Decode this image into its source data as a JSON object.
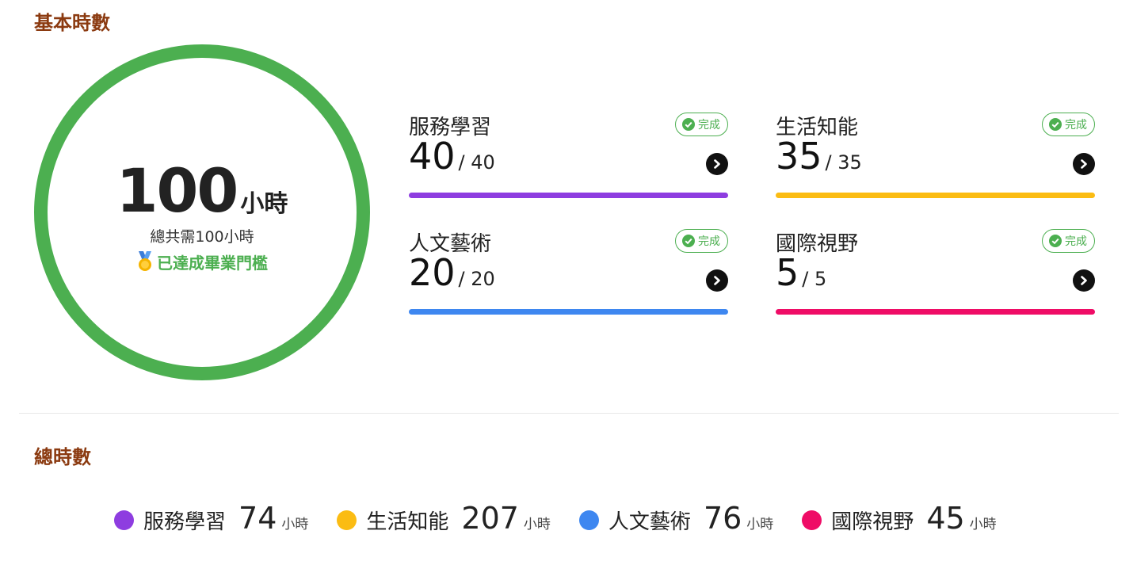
{
  "basic": {
    "title": "基本時數",
    "total_hours": "100",
    "hours_unit": "小時",
    "required_text": "總共需100小時",
    "achieved_text": "已達成畢業門檻",
    "ring_color": "#4caf50",
    "categories": [
      {
        "label": "服務學習",
        "current": "40",
        "target": "/ 40",
        "badge": "完成",
        "color": "#8e3de0",
        "progress": 1.0
      },
      {
        "label": "生活知能",
        "current": "35",
        "target": "/ 35",
        "badge": "完成",
        "color": "#fbbc13",
        "progress": 1.0
      },
      {
        "label": "人文藝術",
        "current": "20",
        "target": "/ 20",
        "badge": "完成",
        "color": "#3e87f0",
        "progress": 1.0
      },
      {
        "label": "國際視野",
        "current": "5",
        "target": "/ 5",
        "badge": "完成",
        "color": "#ef0c66",
        "progress": 1.0
      }
    ]
  },
  "total": {
    "title": "總時數",
    "items": [
      {
        "label": "服務學習",
        "value": "74",
        "unit": "小時",
        "color": "#8e3de0"
      },
      {
        "label": "生活知能",
        "value": "207",
        "unit": "小時",
        "color": "#fbbc13"
      },
      {
        "label": "人文藝術",
        "value": "76",
        "unit": "小時",
        "color": "#3e87f0"
      },
      {
        "label": "國際視野",
        "value": "45",
        "unit": "小時",
        "color": "#ef0c66"
      }
    ]
  }
}
